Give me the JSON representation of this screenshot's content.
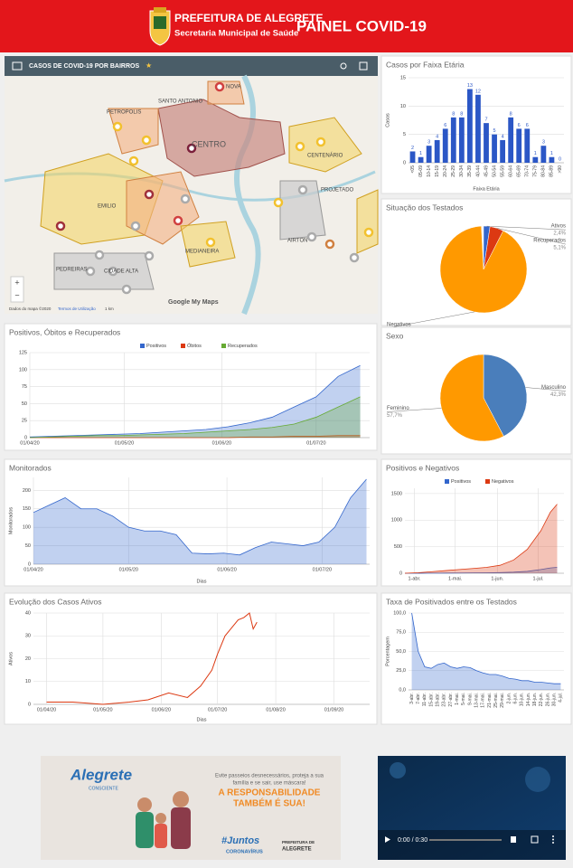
{
  "header": {
    "title": "PREFEITURA DE ALEGRETE",
    "subtitle": "Secretaria Municipal de Saúde",
    "panel": "PAINEL COVID-19"
  },
  "map": {
    "title": "CASOS DE COVID-19 POR BAIRROS",
    "star": "★",
    "labels": [
      "CENTRO",
      "PETROPOLIS",
      "SANTO ANTONIO",
      "NOVA",
      "CENTENÁRIO",
      "PROJETADO",
      "AIRTON",
      "MEDIANEIRA",
      "PEDREIRAS",
      "CIDADE ALTA",
      "EMILIO"
    ],
    "zoom_in": "+",
    "zoom_out": "−",
    "credits": "Dados do mapa ©2020",
    "terms": "Termos de Utilização",
    "scale": "1 km",
    "brand": "Google My Maps"
  },
  "chart_data": [
    {
      "type": "bar",
      "title": "Casos por Faixa Etária",
      "ylabel": "Casos",
      "xlabel": "Faixa Etária",
      "color": "#2b57c6",
      "categories": [
        "<05",
        "05-09",
        "10-14",
        "15-19",
        "20-24",
        "25-29",
        "30-34",
        "35-39",
        "40-44",
        "45-49",
        "50-54",
        "55-59",
        "60-64",
        "65-69",
        "70-74",
        "75-79",
        "80-84",
        "85-89",
        ">90"
      ],
      "values": [
        2,
        1,
        3,
        4,
        6,
        8,
        8,
        13,
        12,
        7,
        5,
        4,
        8,
        6,
        6,
        1,
        3,
        1,
        0
      ],
      "ylim": [
        0,
        15
      ],
      "yticks": [
        0,
        5,
        10,
        15
      ],
      "grid": true
    },
    {
      "type": "pie",
      "title": "Situação dos Testados",
      "categories": [
        "Ativos",
        "Recuperados",
        "Negativos"
      ],
      "values": [
        2.4,
        5.1,
        91.7
      ],
      "value_labels": [
        "2,4%",
        "5,1%",
        "91,7%"
      ],
      "colors": [
        "#3366cc",
        "#dc3912",
        "#ff9900"
      ]
    },
    {
      "type": "area",
      "title": "Positivos, Óbitos e Recuperados",
      "x": [
        "2020-04-01",
        "2020-04-08",
        "2020-04-15",
        "2020-04-22",
        "2020-04-29",
        "2020-05-06",
        "2020-05-13",
        "2020-05-20",
        "2020-05-27",
        "2020-06-03",
        "2020-06-10",
        "2020-06-17",
        "2020-06-24",
        "2020-07-01",
        "2020-07-08",
        "2020-07-15"
      ],
      "series": [
        {
          "name": "Positivos",
          "color": "#3366cc",
          "values": [
            1,
            2,
            3,
            4,
            5,
            6,
            8,
            10,
            12,
            16,
            22,
            30,
            45,
            60,
            90,
            106
          ]
        },
        {
          "name": "Óbitos",
          "color": "#dc3912",
          "values": [
            0,
            0,
            0,
            0,
            0,
            0,
            0,
            0,
            0,
            0,
            1,
            1,
            2,
            2,
            3,
            3
          ]
        },
        {
          "name": "Recuperados",
          "color": "#66aa33",
          "values": [
            0,
            1,
            2,
            3,
            3,
            4,
            5,
            6,
            8,
            10,
            12,
            15,
            20,
            30,
            45,
            60
          ]
        }
      ],
      "xlim": [
        "2020-04-01",
        "2020-07-18"
      ],
      "xticks": [
        {
          "value": "2020-04-01",
          "label": "01/04/20"
        },
        {
          "value": "2020-05-01",
          "label": "01/05/20"
        },
        {
          "value": "2020-06-01",
          "label": "01/06/20"
        },
        {
          "value": "2020-07-01",
          "label": "01/07/20"
        }
      ],
      "ylim": [
        0,
        125
      ],
      "yticks": [
        0,
        25,
        50,
        75,
        100,
        125
      ],
      "grid": true
    },
    {
      "type": "pie",
      "title": "Sexo",
      "categories": [
        "Masculino",
        "Feminino"
      ],
      "values": [
        42.3,
        57.7
      ],
      "value_labels": [
        "42,3%",
        "57,7%"
      ],
      "colors": [
        "#4a7ebb",
        "#ff9900"
      ]
    },
    {
      "type": "area",
      "title": "Monitorados",
      "ylabel": "Monitorados",
      "xlabel": "Dias",
      "x": [
        "2020-04-01",
        "2020-04-06",
        "2020-04-11",
        "2020-04-16",
        "2020-04-21",
        "2020-04-26",
        "2020-05-01",
        "2020-05-06",
        "2020-05-11",
        "2020-05-16",
        "2020-05-21",
        "2020-05-26",
        "2020-05-31",
        "2020-06-05",
        "2020-06-10",
        "2020-06-15",
        "2020-06-20",
        "2020-06-25",
        "2020-06-30",
        "2020-07-05",
        "2020-07-10",
        "2020-07-15"
      ],
      "series": [
        {
          "name": "Monitorados",
          "color": "#3366cc",
          "values": [
            140,
            160,
            180,
            150,
            150,
            130,
            100,
            90,
            90,
            80,
            30,
            28,
            30,
            25,
            45,
            60,
            55,
            50,
            60,
            100,
            180,
            230
          ]
        }
      ],
      "xlim": [
        "2020-04-01",
        "2020-07-16"
      ],
      "xticks": [
        {
          "value": "2020-04-01",
          "label": "01/04/20"
        },
        {
          "value": "2020-05-01",
          "label": "01/05/20"
        },
        {
          "value": "2020-06-01",
          "label": "01/06/20"
        },
        {
          "value": "2020-07-01",
          "label": "01/07/20"
        }
      ],
      "ylim": [
        0,
        235
      ],
      "yticks": [
        0,
        50,
        100,
        150,
        200
      ],
      "grid": true
    },
    {
      "type": "area",
      "title": "Positivos e Negativos",
      "x": [
        "2020-03-25",
        "2020-04-04",
        "2020-04-14",
        "2020-04-24",
        "2020-05-04",
        "2020-05-14",
        "2020-05-24",
        "2020-06-03",
        "2020-06-13",
        "2020-06-23",
        "2020-07-03",
        "2020-07-10",
        "2020-07-15"
      ],
      "series": [
        {
          "name": "Positivos",
          "color": "#3366cc",
          "values": [
            0,
            1,
            2,
            3,
            4,
            6,
            8,
            12,
            20,
            35,
            70,
            100,
            110
          ]
        },
        {
          "name": "Negativos",
          "color": "#dc3912",
          "values": [
            0,
            10,
            30,
            50,
            70,
            90,
            110,
            150,
            250,
            450,
            800,
            1150,
            1300
          ]
        }
      ],
      "xlim": [
        "2020-03-25",
        "2020-07-20"
      ],
      "xticks": [
        {
          "value": "2020-04-01",
          "label": "1-abr."
        },
        {
          "value": "2020-05-01",
          "label": "1-mai."
        },
        {
          "value": "2020-06-01",
          "label": "1-jun."
        },
        {
          "value": "2020-07-01",
          "label": "1-jul."
        }
      ],
      "ylim": [
        0,
        1600
      ],
      "yticks": [
        0,
        500,
        1000,
        1500
      ],
      "grid": true
    },
    {
      "type": "line",
      "title": "Evolução dos Casos Ativos",
      "ylabel": "Ativos",
      "xlabel": "Dias",
      "x": [
        "2020-04-01",
        "2020-04-15",
        "2020-05-01",
        "2020-05-15",
        "2020-05-25",
        "2020-06-05",
        "2020-06-15",
        "2020-06-22",
        "2020-06-28",
        "2020-07-01",
        "2020-07-05",
        "2020-07-08",
        "2020-07-12",
        "2020-07-15",
        "2020-07-18",
        "2020-07-20",
        "2020-07-22"
      ],
      "series": [
        {
          "name": "Ativos",
          "color": "#dc3912",
          "values": [
            1,
            1,
            0,
            1,
            2,
            5,
            3,
            8,
            15,
            22,
            30,
            33,
            37,
            38,
            40,
            33,
            36
          ]
        }
      ],
      "xlim": [
        "2020-03-25",
        "2020-09-20"
      ],
      "xticks": [
        {
          "value": "2020-04-01",
          "label": "01/04/20"
        },
        {
          "value": "2020-05-01",
          "label": "01/05/20"
        },
        {
          "value": "2020-06-01",
          "label": "01/06/20"
        },
        {
          "value": "2020-07-01",
          "label": "01/07/20"
        },
        {
          "value": "2020-08-01",
          "label": "01/08/20"
        },
        {
          "value": "2020-09-01",
          "label": "01/09/20"
        }
      ],
      "ylim": [
        0,
        40
      ],
      "yticks": [
        0,
        10,
        20,
        30,
        40
      ],
      "grid": true
    },
    {
      "type": "area",
      "title": "Taxa de Positivados entre os Testados",
      "ylabel": "Porcentagem",
      "categories": [
        "3-abr.",
        "7-abr.",
        "11-abr.",
        "15-abr.",
        "19-abr.",
        "23-abr.",
        "27-abr.",
        "1-mai.",
        "5-mai.",
        "9-mai.",
        "13-mai.",
        "17-mai.",
        "21-mai.",
        "25-mai.",
        "29-mai.",
        "2-jun.",
        "6-jun.",
        "10-jun.",
        "14-jun.",
        "18-jun.",
        "22-jun.",
        "26-jun.",
        "30-jun.",
        "4-jul."
      ],
      "series": [
        {
          "name": "Taxa",
          "color": "#3366cc",
          "values": [
            100,
            50,
            30,
            28,
            33,
            35,
            30,
            28,
            30,
            29,
            25,
            22,
            20,
            20,
            18,
            15,
            14,
            12,
            12,
            10,
            10,
            9,
            8,
            8
          ]
        }
      ],
      "ylim": [
        0,
        100
      ],
      "yticks": [
        {
          "value": 0,
          "label": "0,0"
        },
        {
          "value": 25,
          "label": "25,0"
        },
        {
          "value": 50,
          "label": "50,0"
        },
        {
          "value": 75,
          "label": "75,0"
        },
        {
          "value": 100,
          "label": "100,0"
        }
      ],
      "grid": true
    }
  ],
  "banner": {
    "brand": "Alegrete",
    "tag": "CONSCIENTE",
    "line1": "Evite passeios desnecessários, proteja a sua",
    "line2": "família e se sair, use máscara!",
    "headline1": "A RESPONSABILIDADE",
    "headline2": "TAMBÉM É SUA!",
    "hashtag": "#Juntos",
    "against": "CORONAVÍRUS",
    "footer1": "PREFEITURA DE",
    "footer2": "ALEGRETE"
  },
  "video": {
    "time": "0:00 / 0:30"
  }
}
